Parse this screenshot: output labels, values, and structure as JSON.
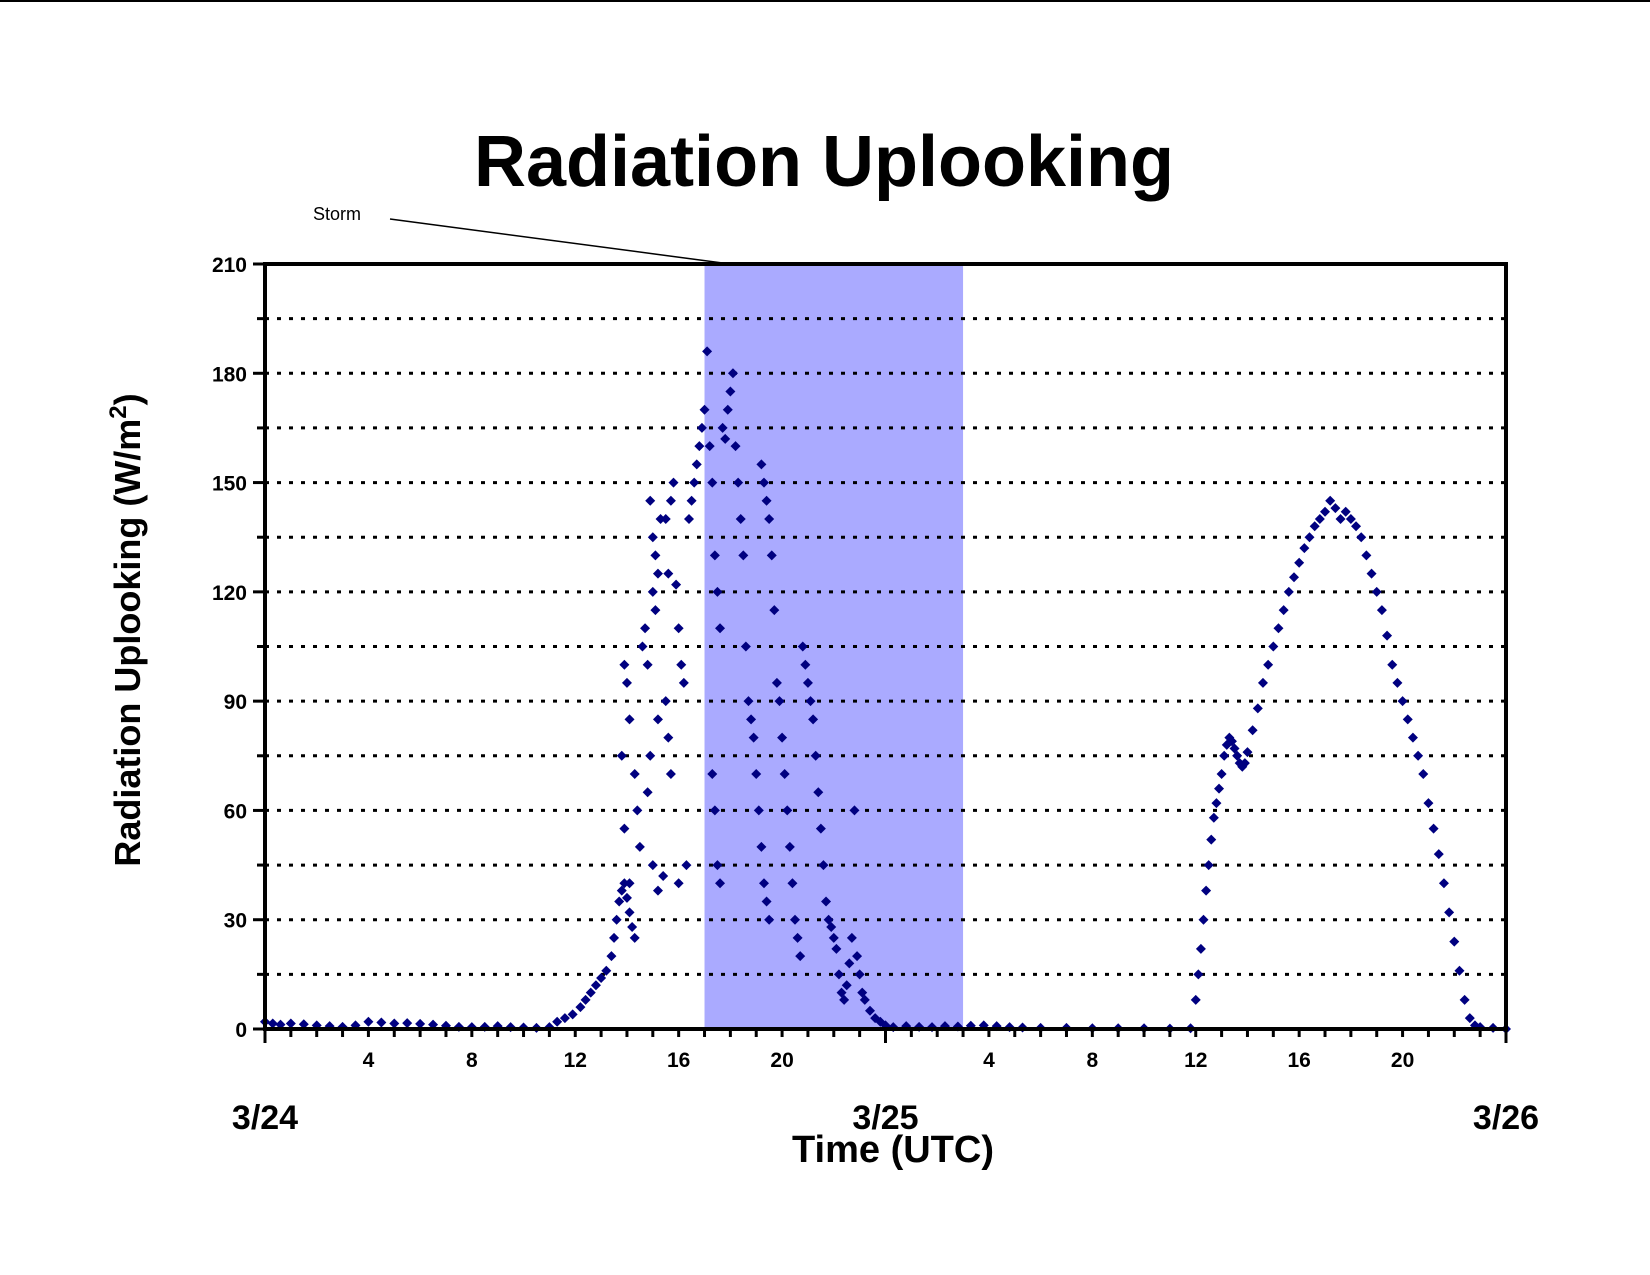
{
  "chart_data": {
    "type": "scatter",
    "title": "Radiation Uplooking",
    "ylabel_main": "Radiation Uplooking (W/m",
    "ylabel_sup": "2",
    "ylabel_close": ")",
    "xlabel": "Time (UTC)",
    "xlim_hours": [
      0,
      48
    ],
    "ylim": [
      0,
      210
    ],
    "y_ticks": [
      0,
      30,
      60,
      90,
      120,
      150,
      180,
      210
    ],
    "y_minor_ticks": [
      15,
      45,
      75,
      105,
      135,
      165,
      195
    ],
    "x_tick_labels": [
      {
        "hour": 4,
        "label": "4"
      },
      {
        "hour": 8,
        "label": "8"
      },
      {
        "hour": 12,
        "label": "12"
      },
      {
        "hour": 16,
        "label": "16"
      },
      {
        "hour": 20,
        "label": "20"
      },
      {
        "hour": 28,
        "label": "4"
      },
      {
        "hour": 32,
        "label": "8"
      },
      {
        "hour": 36,
        "label": "12"
      },
      {
        "hour": 40,
        "label": "16"
      },
      {
        "hour": 44,
        "label": "20"
      }
    ],
    "date_labels": [
      {
        "hour": 0,
        "label": "3/24"
      },
      {
        "hour": 24,
        "label": "3/25"
      },
      {
        "hour": 48,
        "label": "3/26"
      }
    ],
    "grid": "horizontal dotted",
    "storm_band": {
      "label": "Storm",
      "start_hour": 17,
      "end_hour": 27,
      "color": "#aaaaff"
    },
    "marker_color": "#000080",
    "series": [
      {
        "points_hours_watts": [
          [
            0,
            2
          ],
          [
            0.3,
            1.5
          ],
          [
            0.6,
            1.2
          ],
          [
            1,
            1.5
          ],
          [
            1.5,
            1.3
          ],
          [
            2,
            1
          ],
          [
            2.5,
            0.8
          ],
          [
            3,
            0.6
          ],
          [
            3.5,
            1
          ],
          [
            4,
            2
          ],
          [
            4.5,
            1.8
          ],
          [
            5,
            1.5
          ],
          [
            5.5,
            1.6
          ],
          [
            6,
            1.4
          ],
          [
            6.5,
            1.2
          ],
          [
            7,
            0.9
          ],
          [
            7.5,
            0.6
          ],
          [
            8,
            0.5
          ],
          [
            8.5,
            0.6
          ],
          [
            9,
            0.8
          ],
          [
            9.5,
            0.5
          ],
          [
            10,
            0.4
          ],
          [
            10.5,
            0.3
          ],
          [
            11,
            0.5
          ],
          [
            11.3,
            2
          ],
          [
            11.6,
            3
          ],
          [
            11.9,
            4
          ],
          [
            12.2,
            6
          ],
          [
            12.4,
            8
          ],
          [
            12.6,
            10
          ],
          [
            12.8,
            12
          ],
          [
            13.0,
            14
          ],
          [
            13.2,
            16
          ],
          [
            13.4,
            20
          ],
          [
            13.5,
            25
          ],
          [
            13.6,
            30
          ],
          [
            13.7,
            35
          ],
          [
            13.8,
            38
          ],
          [
            13.9,
            40
          ],
          [
            14.0,
            36
          ],
          [
            14.1,
            32
          ],
          [
            14.2,
            28
          ],
          [
            14.3,
            25
          ],
          [
            14.1,
            40
          ],
          [
            13.9,
            100
          ],
          [
            14.0,
            95
          ],
          [
            14.1,
            85
          ],
          [
            13.8,
            75
          ],
          [
            13.9,
            55
          ],
          [
            14.4,
            60
          ],
          [
            14.5,
            50
          ],
          [
            14.3,
            70
          ],
          [
            14.6,
            105
          ],
          [
            14.7,
            110
          ],
          [
            14.8,
            100
          ],
          [
            14.9,
            145
          ],
          [
            15.0,
            135
          ],
          [
            15.1,
            130
          ],
          [
            15.2,
            125
          ],
          [
            15.3,
            140
          ],
          [
            15.0,
            120
          ],
          [
            15.1,
            115
          ],
          [
            15.2,
            85
          ],
          [
            14.9,
            75
          ],
          [
            14.8,
            65
          ],
          [
            15.0,
            45
          ],
          [
            15.2,
            38
          ],
          [
            15.4,
            42
          ],
          [
            15.5,
            90
          ],
          [
            15.6,
            80
          ],
          [
            15.7,
            70
          ],
          [
            15.5,
            140
          ],
          [
            15.7,
            145
          ],
          [
            15.8,
            150
          ],
          [
            15.6,
            125
          ],
          [
            15.9,
            122
          ],
          [
            16.0,
            110
          ],
          [
            16.1,
            100
          ],
          [
            16.2,
            95
          ],
          [
            16.0,
            40
          ],
          [
            16.3,
            45
          ],
          [
            16.4,
            140
          ],
          [
            16.5,
            145
          ],
          [
            16.6,
            150
          ],
          [
            16.7,
            155
          ],
          [
            16.8,
            160
          ],
          [
            16.9,
            165
          ],
          [
            17.0,
            170
          ],
          [
            17.1,
            186
          ],
          [
            17.2,
            160
          ],
          [
            17.3,
            150
          ],
          [
            17.4,
            130
          ],
          [
            17.5,
            120
          ],
          [
            17.6,
            110
          ],
          [
            17.3,
            70
          ],
          [
            17.4,
            60
          ],
          [
            17.5,
            45
          ],
          [
            17.6,
            40
          ],
          [
            17.7,
            165
          ],
          [
            17.8,
            162
          ],
          [
            17.9,
            170
          ],
          [
            18.0,
            175
          ],
          [
            18.1,
            180
          ],
          [
            18.2,
            160
          ],
          [
            18.3,
            150
          ],
          [
            18.4,
            140
          ],
          [
            18.5,
            130
          ],
          [
            18.6,
            105
          ],
          [
            18.7,
            90
          ],
          [
            18.8,
            85
          ],
          [
            18.9,
            80
          ],
          [
            19.0,
            70
          ],
          [
            19.1,
            60
          ],
          [
            19.2,
            50
          ],
          [
            19.3,
            40
          ],
          [
            19.4,
            35
          ],
          [
            19.5,
            30
          ],
          [
            19.2,
            155
          ],
          [
            19.3,
            150
          ],
          [
            19.4,
            145
          ],
          [
            19.5,
            140
          ],
          [
            19.6,
            130
          ],
          [
            19.7,
            115
          ],
          [
            19.8,
            95
          ],
          [
            19.9,
            90
          ],
          [
            20.0,
            80
          ],
          [
            20.1,
            70
          ],
          [
            20.2,
            60
          ],
          [
            20.3,
            50
          ],
          [
            20.4,
            40
          ],
          [
            20.5,
            30
          ],
          [
            20.6,
            25
          ],
          [
            20.7,
            20
          ],
          [
            20.8,
            105
          ],
          [
            20.9,
            100
          ],
          [
            21.0,
            95
          ],
          [
            21.1,
            90
          ],
          [
            21.2,
            85
          ],
          [
            21.3,
            75
          ],
          [
            21.4,
            65
          ],
          [
            21.5,
            55
          ],
          [
            21.6,
            45
          ],
          [
            21.7,
            35
          ],
          [
            21.8,
            30
          ],
          [
            21.9,
            28
          ],
          [
            22.0,
            25
          ],
          [
            22.1,
            22
          ],
          [
            22.2,
            15
          ],
          [
            22.3,
            10
          ],
          [
            22.4,
            8
          ],
          [
            22.5,
            12
          ],
          [
            22.6,
            18
          ],
          [
            22.7,
            25
          ],
          [
            22.8,
            60
          ],
          [
            22.9,
            20
          ],
          [
            23.0,
            15
          ],
          [
            23.1,
            10
          ],
          [
            23.2,
            8
          ],
          [
            23.4,
            5
          ],
          [
            23.6,
            3
          ],
          [
            23.8,
            2
          ],
          [
            24.0,
            1
          ],
          [
            24.3,
            0.5
          ],
          [
            24.8,
            0.8
          ],
          [
            25.3,
            0.6
          ],
          [
            25.8,
            0.5
          ],
          [
            26.3,
            0.8
          ],
          [
            26.8,
            0.7
          ],
          [
            27.3,
            0.9
          ],
          [
            27.8,
            1
          ],
          [
            28.3,
            0.8
          ],
          [
            28.8,
            0.5
          ],
          [
            29.3,
            0.4
          ],
          [
            30,
            0.3
          ],
          [
            31,
            0.3
          ],
          [
            32,
            0.2
          ],
          [
            33,
            0.2
          ],
          [
            34,
            0.2
          ],
          [
            35,
            0.1
          ],
          [
            35.8,
            0.2
          ],
          [
            36.0,
            8
          ],
          [
            36.1,
            15
          ],
          [
            36.2,
            22
          ],
          [
            36.3,
            30
          ],
          [
            36.4,
            38
          ],
          [
            36.5,
            45
          ],
          [
            36.6,
            52
          ],
          [
            36.7,
            58
          ],
          [
            36.8,
            62
          ],
          [
            36.9,
            66
          ],
          [
            37.0,
            70
          ],
          [
            37.1,
            75
          ],
          [
            37.2,
            78
          ],
          [
            37.3,
            80
          ],
          [
            37.4,
            79
          ],
          [
            37.5,
            77
          ],
          [
            37.6,
            75
          ],
          [
            37.7,
            73
          ],
          [
            37.8,
            72
          ],
          [
            37.9,
            73
          ],
          [
            38.0,
            76
          ],
          [
            38.2,
            82
          ],
          [
            38.4,
            88
          ],
          [
            38.6,
            95
          ],
          [
            38.8,
            100
          ],
          [
            39.0,
            105
          ],
          [
            39.2,
            110
          ],
          [
            39.4,
            115
          ],
          [
            39.6,
            120
          ],
          [
            39.8,
            124
          ],
          [
            40.0,
            128
          ],
          [
            40.2,
            132
          ],
          [
            40.4,
            135
          ],
          [
            40.6,
            138
          ],
          [
            40.8,
            140
          ],
          [
            41.0,
            142
          ],
          [
            41.2,
            145
          ],
          [
            41.4,
            143
          ],
          [
            41.6,
            140
          ],
          [
            41.8,
            142
          ],
          [
            42.0,
            140
          ],
          [
            42.2,
            138
          ],
          [
            42.4,
            135
          ],
          [
            42.6,
            130
          ],
          [
            42.8,
            125
          ],
          [
            43.0,
            120
          ],
          [
            43.2,
            115
          ],
          [
            43.4,
            108
          ],
          [
            43.6,
            100
          ],
          [
            43.8,
            95
          ],
          [
            44.0,
            90
          ],
          [
            44.2,
            85
          ],
          [
            44.4,
            80
          ],
          [
            44.6,
            75
          ],
          [
            44.8,
            70
          ],
          [
            45.0,
            62
          ],
          [
            45.2,
            55
          ],
          [
            45.4,
            48
          ],
          [
            45.6,
            40
          ],
          [
            45.8,
            32
          ],
          [
            46.0,
            24
          ],
          [
            46.2,
            16
          ],
          [
            46.4,
            8
          ],
          [
            46.6,
            3
          ],
          [
            46.8,
            1
          ],
          [
            47.0,
            0.5
          ],
          [
            47.5,
            0.3
          ],
          [
            48,
            0
          ]
        ]
      }
    ]
  }
}
